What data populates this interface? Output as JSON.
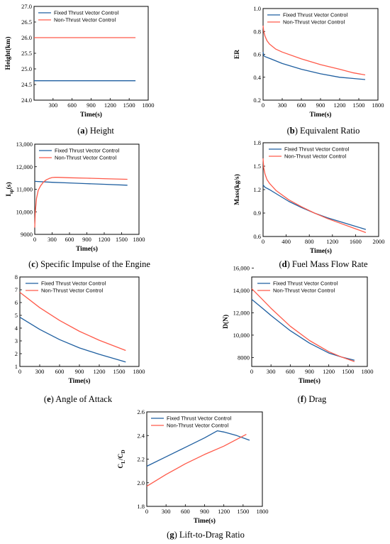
{
  "colors": {
    "fixed": "#1f5fa0",
    "non": "#ff5a4a"
  },
  "chart_data": [
    {
      "id": "a",
      "type": "line",
      "caption_letter": "a",
      "caption_text": " Height",
      "xlabel": "Time(s)",
      "ylabel": "Height(km)",
      "xlim": [
        0,
        1800
      ],
      "ylim": [
        24.0,
        27.0
      ],
      "xticks": [
        "300",
        "600",
        "900",
        "1200",
        "1500",
        "1800"
      ],
      "yticks": [
        "24.0",
        "24.5",
        "25.0",
        "25.5",
        "26.0",
        "26.5",
        "27.0"
      ],
      "legend": "top-left",
      "series": [
        {
          "name": "Fixed Thrust Vector Control",
          "color_key": "fixed",
          "x": [
            0,
            1600
          ],
          "y": [
            24.62,
            24.62
          ]
        },
        {
          "name": "Non-Thrust Vector Control",
          "color_key": "non",
          "x": [
            0,
            1600
          ],
          "y": [
            26.0,
            26.0
          ]
        }
      ]
    },
    {
      "id": "b",
      "type": "line",
      "caption_letter": "b",
      "caption_text": " Equivalent Ratio",
      "xlabel": "Time(s)",
      "ylabel": "ER",
      "xlim": [
        0,
        1800
      ],
      "ylim": [
        0.2,
        1.0
      ],
      "xticks": [
        "0",
        "300",
        "600",
        "900",
        "1200",
        "1500",
        "1800"
      ],
      "yticks": [
        "0.2",
        "0.4",
        "0.6",
        "0.8",
        "1.0"
      ],
      "legend": "top-left",
      "series": [
        {
          "name": "Fixed Thrust Vector Control",
          "color_key": "fixed",
          "x": [
            0,
            10,
            30,
            100,
            300,
            600,
            900,
            1200,
            1400,
            1600
          ],
          "y": [
            0.62,
            0.59,
            0.58,
            0.565,
            0.52,
            0.47,
            0.43,
            0.4,
            0.39,
            0.38
          ]
        },
        {
          "name": "Non-Thrust Vector Control",
          "color_key": "non",
          "x": [
            0,
            10,
            30,
            60,
            100,
            200,
            300,
            600,
            900,
            1200,
            1400,
            1600
          ],
          "y": [
            0.85,
            0.8,
            0.76,
            0.72,
            0.69,
            0.645,
            0.62,
            0.56,
            0.51,
            0.47,
            0.44,
            0.42
          ]
        }
      ]
    },
    {
      "id": "c",
      "type": "line",
      "caption_letter": "c",
      "caption_text": " Specific Impulse of the Engine",
      "xlabel": "Time(s)",
      "ylabel": "I",
      "ylabel_sub": "sp",
      "ylabel_suffix": "(s)",
      "xlim": [
        0,
        1800
      ],
      "ylim": [
        9000,
        13000
      ],
      "xticks": [
        "0",
        "300",
        "600",
        "900",
        "1200",
        "1500",
        "1800"
      ],
      "yticks": [
        "9000",
        "10,000",
        "11,000",
        "12,000",
        "13,000"
      ],
      "legend": "top-left",
      "series": [
        {
          "name": "Fixed Thrust Vector Control",
          "color_key": "fixed",
          "x": [
            0,
            300,
            600,
            900,
            1200,
            1600
          ],
          "y": [
            11350,
            11310,
            11280,
            11250,
            11220,
            11180
          ]
        },
        {
          "name": "Non-Thrust Vector Control",
          "color_key": "non",
          "x": [
            0,
            10,
            30,
            60,
            100,
            150,
            200,
            250,
            300,
            350,
            400,
            600,
            900,
            1200,
            1600
          ],
          "y": [
            9300,
            10000,
            10600,
            10950,
            11150,
            11320,
            11420,
            11480,
            11520,
            11530,
            11530,
            11510,
            11490,
            11470,
            11440
          ]
        }
      ]
    },
    {
      "id": "d",
      "type": "line",
      "caption_letter": "d",
      "caption_text": " Fuel Mass Flow Rate",
      "xlabel": "Time(s)",
      "ylabel": "Mass(kg/s)",
      "xlim": [
        0,
        1800
      ],
      "ylim": [
        0.6,
        1.8
      ],
      "xticks": [
        "0",
        "400",
        "800",
        "1200",
        "1600",
        "2000"
      ],
      "yticks": [
        "0.6",
        "0.9",
        "1.2",
        "1.5",
        "1.8"
      ],
      "legend": "top-right",
      "series": [
        {
          "name": "Fixed Thrust Vector Control",
          "color_key": "fixed",
          "x": [
            0,
            30,
            100,
            200,
            400,
            600,
            800,
            1000,
            1200,
            1400,
            1600
          ],
          "y": [
            1.26,
            1.23,
            1.2,
            1.15,
            1.05,
            0.97,
            0.9,
            0.84,
            0.79,
            0.74,
            0.69
          ]
        },
        {
          "name": "Non-Thrust Vector Control",
          "color_key": "non",
          "x": [
            0,
            10,
            30,
            60,
            100,
            200,
            400,
            600,
            800,
            1000,
            1200,
            1400,
            1600
          ],
          "y": [
            1.6,
            1.48,
            1.4,
            1.33,
            1.28,
            1.19,
            1.07,
            0.98,
            0.9,
            0.83,
            0.77,
            0.71,
            0.65
          ]
        }
      ]
    },
    {
      "id": "e",
      "type": "line",
      "caption_letter": "e",
      "caption_text": " Angle of Attack",
      "xlabel": "Time(s)",
      "ylabel": "Alpha(deg)",
      "xlim": [
        0,
        1800
      ],
      "ylim": [
        1,
        8
      ],
      "xticks": [
        "0",
        "300",
        "600",
        "900",
        "1200",
        "1500",
        "1800"
      ],
      "yticks": [
        "1",
        "2",
        "3",
        "4",
        "5",
        "6",
        "7",
        "8"
      ],
      "legend": "top-right",
      "series": [
        {
          "name": "Fixed Thrust Vector Control",
          "color_key": "fixed",
          "x": [
            0,
            300,
            600,
            900,
            1200,
            1600
          ],
          "y": [
            4.85,
            3.9,
            3.1,
            2.45,
            1.95,
            1.35
          ]
        },
        {
          "name": "Non-Thrust Vector Control",
          "color_key": "non",
          "x": [
            0,
            300,
            600,
            900,
            1200,
            1600
          ],
          "y": [
            6.8,
            5.6,
            4.6,
            3.75,
            3.05,
            2.25
          ]
        }
      ]
    },
    {
      "id": "f",
      "type": "line",
      "caption_letter": "f",
      "caption_text": " Drag",
      "xlabel": "Time(s)",
      "ylabel": "D(N)",
      "xlim": [
        0,
        1800
      ],
      "ylim": [
        7000,
        17000
      ],
      "xticks": [
        "0",
        "300",
        "600",
        "900",
        "1200",
        "1500",
        "1800"
      ],
      "yticks": [
        "8000",
        "10,000",
        "12,000",
        "14,000",
        "16,000"
      ],
      "legend": "top-right",
      "series": [
        {
          "name": "Fixed Thrust Vector Control",
          "color_key": "fixed",
          "x": [
            0,
            150,
            300,
            600,
            900,
            1200,
            1400,
            1600
          ],
          "y": [
            14500,
            13600,
            12700,
            11000,
            9600,
            8500,
            8050,
            7700
          ]
        },
        {
          "name": "Non-Thrust Vector Control",
          "color_key": "non",
          "x": [
            0,
            150,
            300,
            600,
            900,
            1200,
            1400,
            1600
          ],
          "y": [
            15700,
            14600,
            13500,
            11500,
            9900,
            8650,
            8050,
            7550
          ]
        }
      ]
    },
    {
      "id": "g",
      "type": "line",
      "caption_letter": "g",
      "caption_text": " Lift-to-Drag Ratio",
      "xlabel": "Time(s)",
      "ylabel": "C",
      "ylabel_sub": "L",
      "ylabel_mid": "/C",
      "ylabel_sub2": "D",
      "xlim": [
        0,
        1800
      ],
      "ylim": [
        1.8,
        2.6
      ],
      "xticks": [
        "0",
        "300",
        "600",
        "900",
        "1200",
        "1500",
        "1800"
      ],
      "yticks": [
        "1.8",
        "2.0",
        "2.2",
        "2.4",
        "2.6"
      ],
      "legend": "top-left",
      "series": [
        {
          "name": "Fixed Thrust Vector Control",
          "color_key": "fixed",
          "x": [
            0,
            300,
            600,
            900,
            1100,
            1200,
            1400,
            1600
          ],
          "y": [
            2.14,
            2.22,
            2.3,
            2.38,
            2.44,
            2.43,
            2.4,
            2.36
          ]
        },
        {
          "name": "Non-Thrust Vector Control",
          "color_key": "non",
          "x": [
            0,
            300,
            600,
            900,
            1200,
            1550
          ],
          "y": [
            1.97,
            2.07,
            2.16,
            2.24,
            2.31,
            2.41
          ]
        }
      ]
    }
  ]
}
